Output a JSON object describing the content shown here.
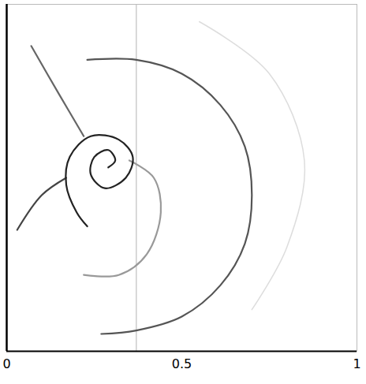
{
  "chart_data": {
    "type": "line",
    "xlim": [
      0,
      1
    ],
    "xticks": [
      0,
      0.5,
      1
    ],
    "ylim": [
      0,
      1
    ],
    "grid": false,
    "tick_labels": "x",
    "series": [
      {
        "color": "#cccccc",
        "x": [
          0.37,
          0.37
        ],
        "values": [
          0,
          1
        ]
      },
      {
        "color": "#dddddd",
        "x": [
          0.55,
          0.75,
          0.85,
          0.8,
          0.7
        ],
        "values": [
          0.95,
          0.8,
          0.55,
          0.3,
          0.12
        ]
      },
      {
        "color": "#999999",
        "x": [
          0.35,
          0.42,
          0.44,
          0.4,
          0.32,
          0.22
        ],
        "values": [
          0.55,
          0.5,
          0.4,
          0.28,
          0.22,
          0.22
        ]
      },
      {
        "color": "#555555",
        "x": [
          0.23,
          0.37,
          0.5,
          0.61,
          0.68,
          0.7,
          0.68,
          0.61,
          0.5,
          0.37,
          0.27
        ],
        "values": [
          0.84,
          0.84,
          0.8,
          0.71,
          0.59,
          0.45,
          0.31,
          0.19,
          0.1,
          0.06,
          0.05
        ]
      },
      {
        "color": "#666666",
        "x": [
          0.07,
          0.15,
          0.22
        ],
        "values": [
          0.88,
          0.74,
          0.62
        ]
      },
      {
        "color": "#444444",
        "x": [
          0.17,
          0.1,
          0.03
        ],
        "values": [
          0.5,
          0.45,
          0.35
        ]
      },
      {
        "color": "#222222",
        "x": [
          0.29,
          0.31,
          0.29,
          0.25,
          0.24,
          0.28,
          0.34,
          0.36,
          0.32,
          0.24,
          0.18,
          0.17,
          0.2,
          0.23
        ],
        "values": [
          0.53,
          0.55,
          0.58,
          0.56,
          0.51,
          0.47,
          0.5,
          0.56,
          0.61,
          0.62,
          0.56,
          0.48,
          0.4,
          0.36
        ]
      }
    ]
  }
}
